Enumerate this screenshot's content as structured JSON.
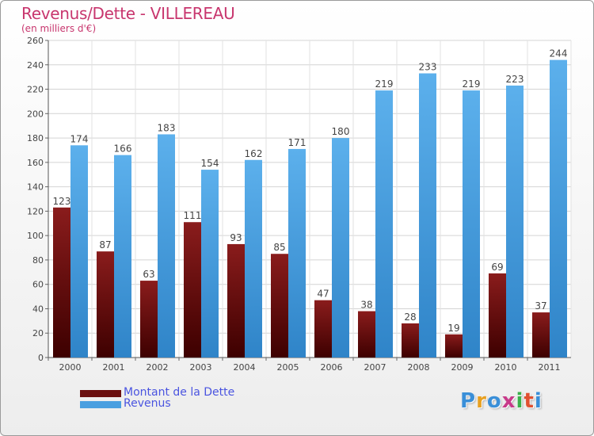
{
  "title": "Revenus/Dette - VILLEREAU",
  "subtitle": "(en milliers d'€)",
  "legend": {
    "items": [
      {
        "label": "Montant de la Dette",
        "color": "#6b1010"
      },
      {
        "label": "Revenus",
        "color": "#4a9fe0"
      }
    ]
  },
  "logo": {
    "text": "Proxiti",
    "colors": [
      "#3a8fd8",
      "#e8a020",
      "#3a8fd8",
      "#c83a8a",
      "#3ab04a",
      "#e05030",
      "#3a8fd8"
    ]
  },
  "colors": {
    "dette_top": "#8a1c1c",
    "dette_bottom": "#3d0000",
    "revenus_top": "#5cb0ec",
    "revenus_bottom": "#2f84c8",
    "title": "#c8366e",
    "legend_text": "#4a54e0"
  },
  "chart_data": {
    "type": "bar",
    "categories": [
      "2000",
      "2001",
      "2002",
      "2003",
      "2004",
      "2005",
      "2006",
      "2007",
      "2008",
      "2009",
      "2010",
      "2011"
    ],
    "series": [
      {
        "name": "Montant de la Dette",
        "values": [
          123,
          87,
          63,
          111,
          93,
          85,
          47,
          38,
          28,
          19,
          69,
          37
        ]
      },
      {
        "name": "Revenus",
        "values": [
          174,
          166,
          183,
          154,
          162,
          171,
          180,
          219,
          233,
          219,
          223,
          244
        ]
      }
    ],
    "ylim": [
      0,
      260
    ],
    "yticks": [
      0,
      20,
      40,
      60,
      80,
      100,
      120,
      140,
      160,
      180,
      200,
      220,
      240,
      260
    ],
    "grid": true,
    "legend_position": "bottom-left",
    "data_labels": true
  }
}
